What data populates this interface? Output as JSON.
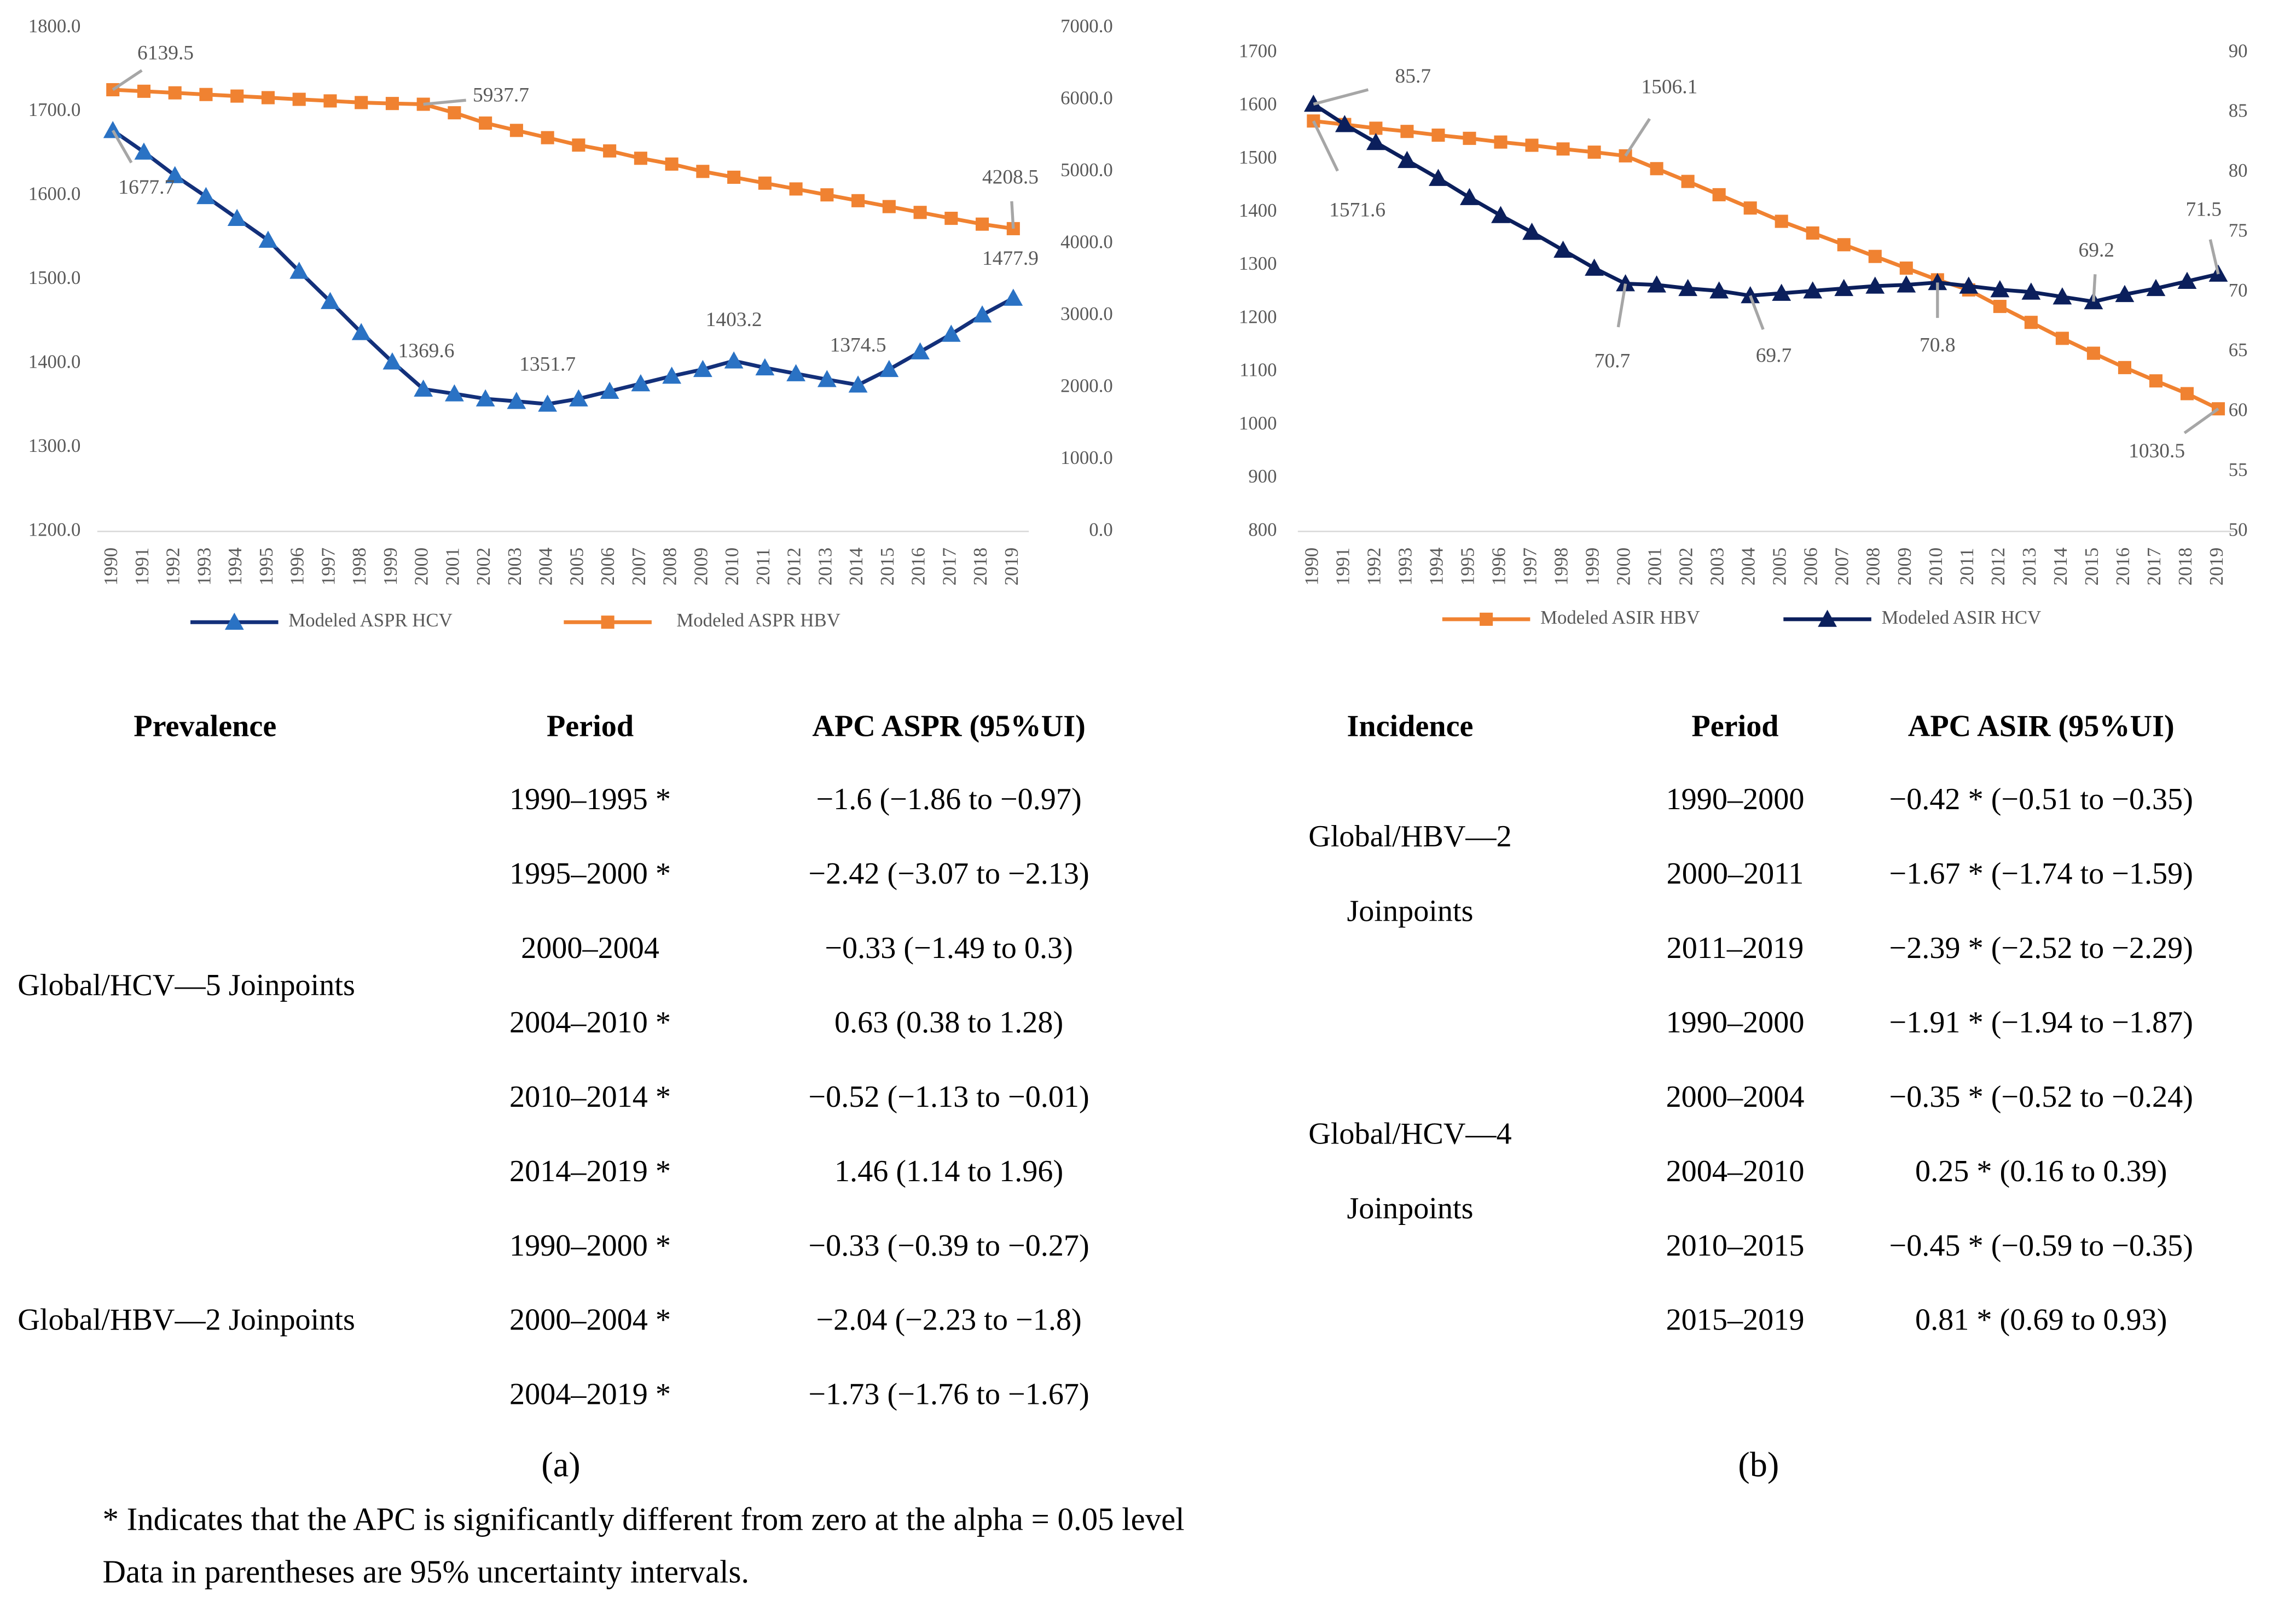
{
  "chart_data": [
    {
      "type": "line",
      "categories": [
        "1990",
        "1991",
        "1992",
        "1993",
        "1994",
        "1995",
        "1996",
        "1997",
        "1998",
        "1999",
        "2000",
        "2001",
        "2002",
        "2003",
        "2004",
        "2005",
        "2006",
        "2007",
        "2008",
        "2009",
        "2010",
        "2011",
        "2012",
        "2013",
        "2014",
        "2015",
        "2016",
        "2017",
        "2018",
        "2019"
      ],
      "ylim": [
        1200,
        1800
      ],
      "yticks": [
        {
          "value": 1200,
          "label": "1200.0"
        },
        {
          "value": 1300,
          "label": "1300.0"
        },
        {
          "value": 1400,
          "label": "1400.0"
        },
        {
          "value": 1500,
          "label": "1500.0"
        },
        {
          "value": 1600,
          "label": "1600.0"
        },
        {
          "value": 1700,
          "label": "1700.0"
        },
        {
          "value": 1800,
          "label": "1800.0"
        }
      ],
      "y2lim": [
        0,
        7000
      ],
      "y2ticks": [
        {
          "value": 0,
          "label": "0.0"
        },
        {
          "value": 1000,
          "label": "1000.0"
        },
        {
          "value": 2000,
          "label": "2000.0"
        },
        {
          "value": 3000,
          "label": "3000.0"
        },
        {
          "value": 4000,
          "label": "4000.0"
        },
        {
          "value": 5000,
          "label": "5000.0"
        },
        {
          "value": 6000,
          "label": "6000.0"
        },
        {
          "value": 7000,
          "label": "7000.0"
        }
      ],
      "grid": false,
      "series": [
        {
          "name": "Modeled ASPR HCV",
          "color": "#13307a",
          "marker_color": "#2a72c4",
          "marker": "triangle",
          "axis": "y",
          "values": [
            1677.7,
            1652,
            1624,
            1599,
            1573,
            1547,
            1510,
            1474,
            1437,
            1402,
            1369.6,
            1364,
            1358,
            1355,
            1351.7,
            1358,
            1367,
            1376,
            1385,
            1393,
            1403.2,
            1395,
            1388,
            1381,
            1374.5,
            1393,
            1414,
            1435,
            1458,
            1477.9
          ],
          "value_labels": [
            "1677.7",
            null,
            null,
            null,
            null,
            null,
            null,
            null,
            null,
            null,
            "1369.6",
            null,
            null,
            null,
            "1351.7",
            null,
            null,
            null,
            null,
            null,
            "1403.2",
            null,
            null,
            null,
            "1374.5",
            null,
            null,
            null,
            null,
            "1477.9"
          ]
        },
        {
          "name": "Modeled ASPR HBV",
          "color": "#f08231",
          "marker_color": "#f08231",
          "marker": "square",
          "axis": "y2",
          "values": [
            6139.5,
            6118,
            6096,
            6073,
            6051,
            6029,
            6006,
            5984,
            5961,
            5948,
            5937.7,
            5819,
            5676,
            5574,
            5473,
            5370,
            5289,
            5187,
            5106,
            5004,
            4923,
            4841,
            4760,
            4678,
            4597,
            4515,
            4434,
            4352,
            4271,
            4208.5
          ],
          "value_labels": [
            "6139.5",
            null,
            null,
            null,
            null,
            null,
            null,
            null,
            null,
            null,
            "5937.7",
            null,
            null,
            null,
            null,
            null,
            null,
            null,
            null,
            null,
            null,
            null,
            null,
            null,
            null,
            null,
            null,
            null,
            null,
            "4208.5"
          ]
        }
      ]
    },
    {
      "type": "line",
      "categories": [
        "1990",
        "1991",
        "1992",
        "1993",
        "1994",
        "1995",
        "1996",
        "1997",
        "1998",
        "1999",
        "2000",
        "2001",
        "2002",
        "2003",
        "2004",
        "2005",
        "2006",
        "2007",
        "2008",
        "2009",
        "2010",
        "2011",
        "2012",
        "2013",
        "2014",
        "2015",
        "2016",
        "2017",
        "2018",
        "2019"
      ],
      "ylim": [
        800,
        1700
      ],
      "yticks": [
        800,
        900,
        1000,
        1100,
        1200,
        1300,
        1400,
        1500,
        1600,
        1700
      ],
      "y2lim": [
        50,
        90
      ],
      "y2ticks": [
        50,
        55,
        60,
        65,
        70,
        75,
        80,
        85,
        90
      ],
      "grid": false,
      "series": [
        {
          "name": "Modeled ASIR HBV",
          "color": "#f08231",
          "marker_color": "#f08231",
          "marker": "square",
          "axis": "y",
          "values": [
            1571.6,
            1565,
            1558,
            1552,
            1545,
            1539,
            1532,
            1526,
            1519,
            1513,
            1506.1,
            1482,
            1458,
            1433,
            1408,
            1383,
            1361,
            1339,
            1317,
            1295,
            1273,
            1254,
            1223,
            1193,
            1163,
            1135,
            1108,
            1083,
            1059,
            1030.5
          ],
          "value_labels": [
            "1571.6",
            null,
            null,
            null,
            null,
            null,
            null,
            null,
            null,
            null,
            "1506.1",
            null,
            null,
            null,
            null,
            null,
            null,
            null,
            null,
            null,
            null,
            null,
            null,
            null,
            null,
            null,
            null,
            null,
            null,
            "1030.5"
          ]
        },
        {
          "name": "Modeled ASIR HCV",
          "color": "#0b1f5c",
          "marker_color": "#0b1f5c",
          "marker": "triangle",
          "axis": "y2",
          "values": [
            85.7,
            84.0,
            82.5,
            81.0,
            79.5,
            77.9,
            76.4,
            75.0,
            73.5,
            72.0,
            70.7,
            70.6,
            70.3,
            70.1,
            69.7,
            69.9,
            70.1,
            70.3,
            70.5,
            70.6,
            70.8,
            70.5,
            70.2,
            70.0,
            69.6,
            69.2,
            69.8,
            70.3,
            70.9,
            71.5
          ],
          "value_labels": [
            "85.7",
            null,
            null,
            null,
            null,
            null,
            null,
            null,
            null,
            null,
            "70.7",
            null,
            null,
            null,
            "69.7",
            null,
            null,
            null,
            null,
            null,
            "70.8",
            null,
            null,
            null,
            null,
            "69.2",
            null,
            null,
            null,
            "71.5"
          ]
        }
      ]
    }
  ],
  "tables": [
    {
      "headers": [
        "Prevalence",
        "Period",
        "APC ASPR (95%UI)"
      ],
      "groups": [
        {
          "label_lines": [
            "Global/HCV—5 Joinpoints"
          ],
          "rows": [
            [
              "1990–1995 *",
              "−1.6 (−1.86 to −0.97)"
            ],
            [
              "1995–2000 *",
              "−2.42 (−3.07 to −2.13)"
            ],
            [
              "2000–2004",
              "−0.33 (−1.49 to 0.3)"
            ],
            [
              "2004–2010 *",
              "0.63 (0.38 to 1.28)"
            ],
            [
              "2010–2014 *",
              "−0.52 (−1.13 to −0.01)"
            ],
            [
              "2014–2019 *",
              "1.46 (1.14 to 1.96)"
            ]
          ]
        },
        {
          "label_lines": [
            "Global/HBV—2 Joinpoints"
          ],
          "rows": [
            [
              "1990–2000 *",
              "−0.33 (−0.39 to −0.27)"
            ],
            [
              "2000–2004 *",
              "−2.04 (−2.23 to −1.8)"
            ],
            [
              "2004–2019 *",
              "−1.73 (−1.76 to −1.67)"
            ]
          ]
        }
      ]
    },
    {
      "headers": [
        "Incidence",
        "Period",
        "APC ASIR (95%UI)"
      ],
      "groups": [
        {
          "label_lines": [
            "Global/HBV—2",
            "Joinpoints"
          ],
          "rows": [
            [
              "1990–2000",
              "−0.42 * (−0.51 to −0.35)"
            ],
            [
              "2000–2011",
              "−1.67 * (−1.74 to −1.59)"
            ],
            [
              "2011–2019",
              "−2.39 * (−2.52 to −2.29)"
            ]
          ]
        },
        {
          "label_lines": [
            "Global/HCV—4",
            "Joinpoints"
          ],
          "rows": [
            [
              "1990–2000",
              "−1.91 * (−1.94 to −1.87)"
            ],
            [
              "2000–2004",
              "−0.35 * (−0.52 to −0.24)"
            ],
            [
              "2004–2010",
              "0.25 * (0.16 to 0.39)"
            ],
            [
              "2010–2015",
              "−0.45 * (−0.59 to −0.35)"
            ],
            [
              "2015–2019",
              "0.81 * (0.69 to 0.93)"
            ]
          ]
        }
      ]
    }
  ],
  "panel_labels": [
    "(a)",
    "(b)"
  ],
  "footnotes": [
    "* Indicates that the APC is significantly different from zero at the alpha = 0.05 level",
    "Data in parentheses are 95% uncertainty intervals."
  ]
}
